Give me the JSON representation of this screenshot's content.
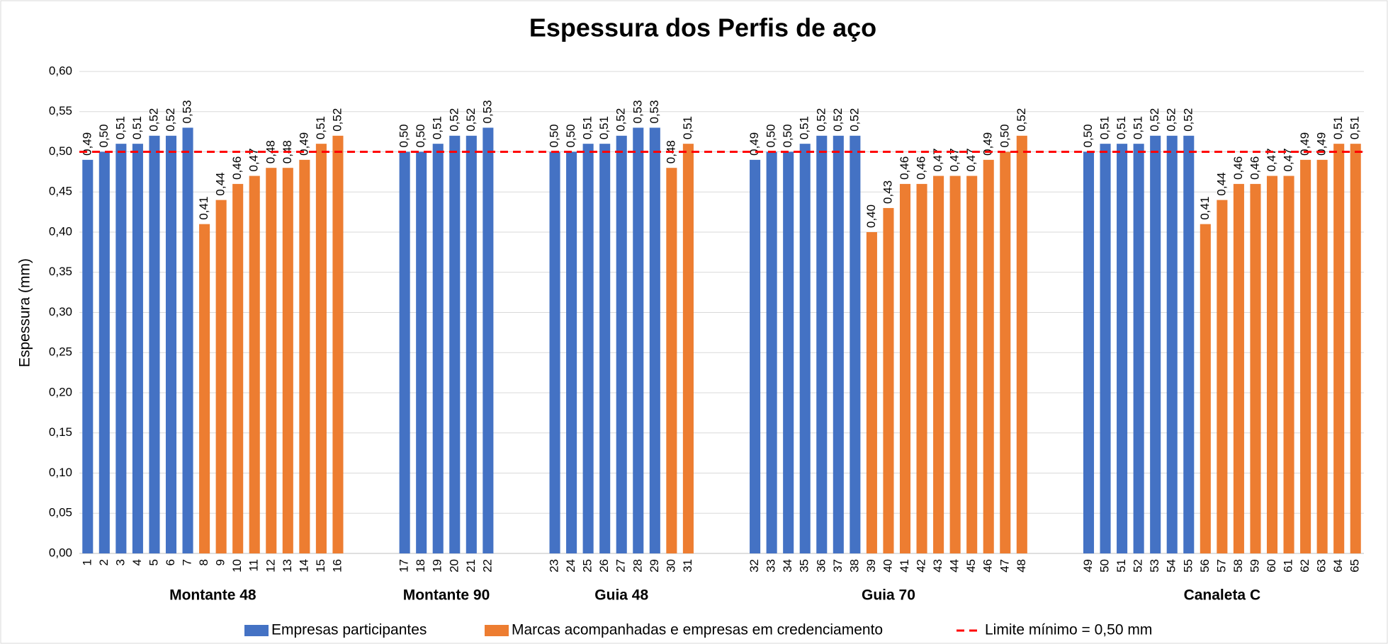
{
  "chart_data": {
    "type": "bar",
    "title": "Espessura dos Perfis de aço",
    "y_label": "Espessura (mm)",
    "groups": [
      {
        "name": "Montante 48",
        "categories": [
          "1",
          "2",
          "3",
          "4",
          "5",
          "6",
          "7",
          "8",
          "9",
          "10",
          "11",
          "12",
          "13",
          "14",
          "15",
          "16"
        ]
      },
      {
        "name": "Montante 90",
        "categories": [
          "17",
          "18",
          "19",
          "20",
          "21",
          "22"
        ]
      },
      {
        "name": "Guia 48",
        "categories": [
          "23",
          "24",
          "25",
          "26",
          "27",
          "28",
          "29",
          "30",
          "31"
        ]
      },
      {
        "name": "Guia 70",
        "categories": [
          "32",
          "33",
          "34",
          "35",
          "36",
          "37",
          "38",
          "39",
          "40",
          "41",
          "42",
          "43",
          "44",
          "45",
          "46",
          "47",
          "48"
        ]
      },
      {
        "name": "Canaleta C",
        "categories": [
          "49",
          "50",
          "51",
          "52",
          "53",
          "54",
          "55",
          "56",
          "57",
          "58",
          "59",
          "60",
          "61",
          "62",
          "63",
          "64",
          "65"
        ]
      }
    ],
    "series": [
      {
        "name": "Empresas participantes",
        "color": "#4472c4",
        "values": [
          0.49,
          0.5,
          0.51,
          0.51,
          0.52,
          0.52,
          0.53,
          null,
          null,
          null,
          null,
          null,
          null,
          null,
          null,
          null,
          0.5,
          0.5,
          0.51,
          0.52,
          0.52,
          0.53,
          0.5,
          0.5,
          0.51,
          0.51,
          0.52,
          0.53,
          0.53,
          null,
          null,
          0.49,
          0.5,
          0.5,
          0.51,
          0.52,
          0.52,
          0.52,
          null,
          null,
          null,
          null,
          null,
          null,
          null,
          null,
          null,
          null,
          0.5,
          0.51,
          0.51,
          0.51,
          0.52,
          0.52,
          0.52,
          null,
          null,
          null,
          null,
          null,
          null,
          null,
          null,
          null,
          null
        ],
        "value_labels": [
          "0,49",
          "0,50",
          "0,51",
          "0,51",
          "0,52",
          "0,52",
          "0,53",
          null,
          null,
          null,
          null,
          null,
          null,
          null,
          null,
          null,
          "0,50",
          "0,50",
          "0,51",
          "0,52",
          "0,52",
          "0,53",
          "0,50",
          "0,50",
          "0,51",
          "0,51",
          "0,52",
          "0,53",
          "0,53",
          null,
          null,
          "0,49",
          "0,50",
          "0,50",
          "0,51",
          "0,52",
          "0,52",
          "0,52",
          null,
          null,
          null,
          null,
          null,
          null,
          null,
          null,
          null,
          null,
          "0,50",
          "0,51",
          "0,51",
          "0,51",
          "0,52",
          "0,52",
          "0,52",
          null,
          null,
          null,
          null,
          null,
          null,
          null,
          null,
          null,
          null
        ]
      },
      {
        "name": "Marcas acompanhadas e empresas em credenciamento",
        "color": "#ed7d31",
        "values": [
          null,
          null,
          null,
          null,
          null,
          null,
          null,
          0.41,
          0.44,
          0.46,
          0.47,
          0.48,
          0.48,
          0.49,
          0.51,
          0.52,
          null,
          null,
          null,
          null,
          null,
          null,
          null,
          null,
          null,
          null,
          null,
          null,
          null,
          0.48,
          0.51,
          null,
          null,
          null,
          null,
          null,
          null,
          null,
          0.4,
          0.43,
          0.46,
          0.46,
          0.47,
          0.47,
          0.47,
          0.49,
          0.5,
          0.52,
          null,
          null,
          null,
          null,
          null,
          null,
          null,
          0.41,
          0.44,
          0.46,
          0.46,
          0.47,
          0.47,
          0.49,
          0.49,
          0.51,
          0.51
        ],
        "value_labels": [
          null,
          null,
          null,
          null,
          null,
          null,
          null,
          "0,41",
          "0,44",
          "0,46",
          "0,47",
          "0,48",
          "0,48",
          "0,49",
          "0,51",
          "0,52",
          null,
          null,
          null,
          null,
          null,
          null,
          null,
          null,
          null,
          null,
          null,
          null,
          null,
          "0,48",
          "0,51",
          null,
          null,
          null,
          null,
          null,
          null,
          null,
          "0,40",
          "0,43",
          "0,46",
          "0,46",
          "0,47",
          "0,47",
          "0,47",
          "0,49",
          "0,50",
          "0,52",
          null,
          null,
          null,
          null,
          null,
          null,
          null,
          "0,41",
          "0,44",
          "0,46",
          "0,46",
          "0,47",
          "0,47",
          "0,49",
          "0,49",
          "0,51",
          "0,51"
        ]
      }
    ],
    "reference_line": {
      "name": "Limite mínimo = 0,50 mm",
      "value": 0.5,
      "color": "#ff0000"
    },
    "ylim": [
      0,
      0.6
    ],
    "yticks": [
      {
        "value": 0,
        "label": "0,00"
      },
      {
        "value": 0.05,
        "label": "0,05"
      },
      {
        "value": 0.1,
        "label": "0,10"
      },
      {
        "value": 0.15,
        "label": "0,15"
      },
      {
        "value": 0.2,
        "label": "0,20"
      },
      {
        "value": 0.25,
        "label": "0,25"
      },
      {
        "value": 0.3,
        "label": "0,30"
      },
      {
        "value": 0.35,
        "label": "0,35"
      },
      {
        "value": 0.4,
        "label": "0,40"
      },
      {
        "value": 0.45,
        "label": "0,45"
      },
      {
        "value": 0.5,
        "label": "0,50"
      },
      {
        "value": 0.55,
        "label": "0,55"
      },
      {
        "value": 0.6,
        "label": "0,60"
      }
    ],
    "grid": true
  }
}
